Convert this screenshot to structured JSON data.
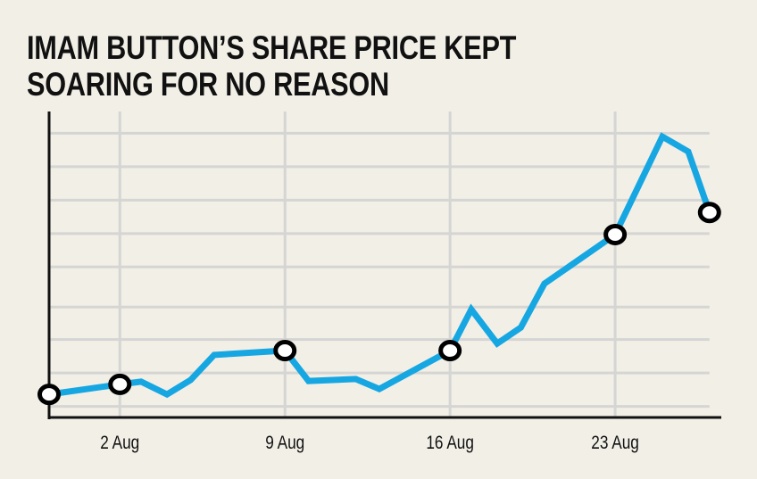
{
  "chart_data": {
    "type": "line",
    "title": "IMAM BUTTON’S SHARE PRICE KEPT SOARING FOR NO REASON",
    "title_lines": [
      "IMAM BUTTON’S SHARE PRICE KEPT",
      "SOARING FOR NO REASON"
    ],
    "xlabel": "",
    "ylabel": "",
    "x_unit": "day of August (relative position)",
    "y_unit": "unlabeled index (gridline units)",
    "xlim": [
      -1,
      27.5
    ],
    "ylim": [
      0,
      9.15
    ],
    "x_ticks": [
      {
        "value": 2,
        "label": "2 Aug"
      },
      {
        "value": 9,
        "label": "9 Aug"
      },
      {
        "value": 16,
        "label": "16 Aug"
      },
      {
        "value": 23,
        "label": "23 Aug"
      }
    ],
    "y_gridlines": [
      0.33,
      1.33,
      2.33,
      3.3,
      4.5,
      5.5,
      6.5,
      7.5,
      8.5
    ],
    "grid": true,
    "y_tick_labels_shown": false,
    "series": [
      {
        "name": "Share price",
        "color": "#16a7e2",
        "x": [
          -1,
          2,
          2.9,
          4,
          5,
          6,
          9,
          10,
          12,
          13,
          16,
          16.9,
          18,
          19,
          20,
          23,
          25,
          26.1,
          27
        ],
        "y": [
          0.69,
          0.99,
          1.07,
          0.69,
          1.12,
          1.87,
          2.0,
          1.09,
          1.15,
          0.85,
          2.0,
          3.23,
          2.21,
          2.69,
          4.0,
          5.47,
          8.4,
          7.95,
          6.13
        ],
        "markers_at_x": [
          -1,
          2,
          9,
          16,
          23,
          27
        ]
      }
    ]
  },
  "colors": {
    "background": "#f2efe7",
    "grid": "#d5d5d3",
    "axis": "#111111",
    "line": "#16a7e2",
    "marker_fill": "#ffffff",
    "marker_stroke": "#000000"
  }
}
